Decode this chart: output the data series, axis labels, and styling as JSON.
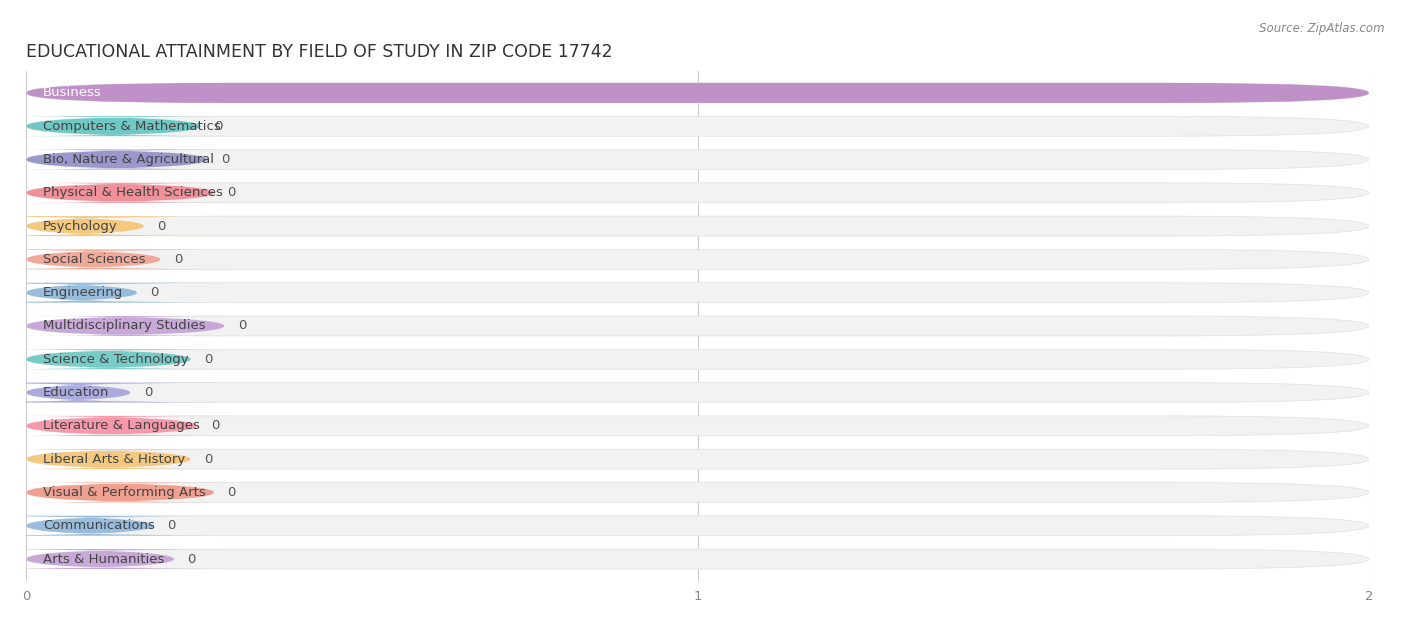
{
  "title": "EDUCATIONAL ATTAINMENT BY FIELD OF STUDY IN ZIP CODE 17742",
  "source": "Source: ZipAtlas.com",
  "categories": [
    "Business",
    "Computers & Mathematics",
    "Bio, Nature & Agricultural",
    "Physical & Health Sciences",
    "Psychology",
    "Social Sciences",
    "Engineering",
    "Multidisciplinary Studies",
    "Science & Technology",
    "Education",
    "Literature & Languages",
    "Liberal Arts & History",
    "Visual & Performing Arts",
    "Communications",
    "Arts & Humanities"
  ],
  "values": [
    2,
    0,
    0,
    0,
    0,
    0,
    0,
    0,
    0,
    0,
    0,
    0,
    0,
    0,
    0
  ],
  "bar_colors": [
    "#c090c8",
    "#70c8c4",
    "#9898cc",
    "#f09098",
    "#f5c880",
    "#f0a898",
    "#98bcdc",
    "#c8a8d8",
    "#78ccc8",
    "#aaaadc",
    "#f898aa",
    "#f5c880",
    "#f0a090",
    "#98bcdc",
    "#c8a8d8"
  ],
  "label_widths_data": [
    0.38,
    0.26,
    0.27,
    0.28,
    0.175,
    0.2,
    0.165,
    0.295,
    0.245,
    0.155,
    0.255,
    0.245,
    0.28,
    0.19,
    0.22
  ],
  "xlim": [
    0,
    2
  ],
  "xticks": [
    0,
    1,
    2
  ],
  "background_color": "#ffffff",
  "bar_bg_color": "#f2f2f2",
  "bar_bg_edge_color": "#e0e0e0",
  "grid_color": "#cccccc",
  "title_fontsize": 12.5,
  "label_fontsize": 9.5,
  "value_fontsize": 9.5,
  "bar_height": 0.6
}
